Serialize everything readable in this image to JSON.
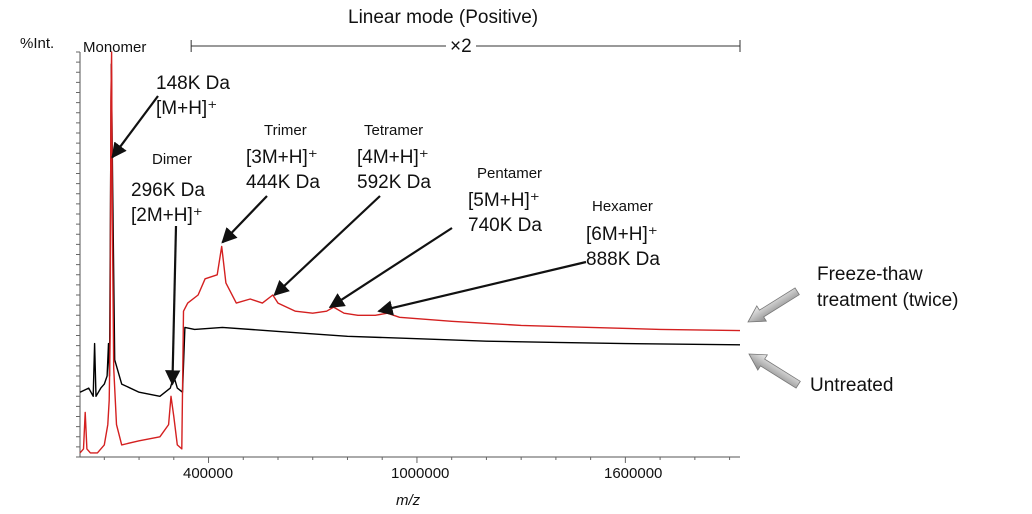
{
  "chart_data": {
    "type": "line",
    "title": "Linear mode (Positive)",
    "xlabel": "m/z",
    "ylabel": "%Int.",
    "xlim": [
      30000,
      1930000
    ],
    "ylim": [
      0,
      100
    ],
    "x_ticks": [
      {
        "value": 400000,
        "label": "400000"
      },
      {
        "value": 1000000,
        "label": "1000000"
      },
      {
        "value": 1600000,
        "label": "1600000"
      }
    ],
    "zoom": {
      "label": "×2",
      "from": 350000,
      "to": 1930000
    },
    "series": [
      {
        "name": "Untreated",
        "color": "#000000",
        "points": [
          [
            30000,
            16
          ],
          [
            55000,
            17
          ],
          [
            68000,
            15
          ],
          [
            72000,
            28
          ],
          [
            76000,
            15
          ],
          [
            90000,
            17
          ],
          [
            100000,
            18
          ],
          [
            108000,
            20
          ],
          [
            112000,
            28
          ],
          [
            115000,
            20
          ],
          [
            120000,
            97
          ],
          [
            124000,
            66
          ],
          [
            130000,
            24
          ],
          [
            150000,
            18
          ],
          [
            200000,
            16
          ],
          [
            260000,
            15
          ],
          [
            290000,
            17
          ],
          [
            300000,
            20
          ],
          [
            310000,
            17
          ],
          [
            325000,
            16
          ],
          [
            332000,
            32
          ],
          [
            360000,
            31.5
          ],
          [
            440000,
            32
          ],
          [
            600000,
            31
          ],
          [
            800000,
            29.8
          ],
          [
            1000000,
            29.2
          ],
          [
            1200000,
            28.6
          ],
          [
            1400000,
            28.3
          ],
          [
            1600000,
            28
          ],
          [
            1930000,
            27.7
          ]
        ]
      },
      {
        "name": "Freeze-thaw treatment (twice)",
        "color": "#d42020",
        "points": [
          [
            30000,
            1
          ],
          [
            40000,
            2
          ],
          [
            45000,
            11
          ],
          [
            50000,
            2
          ],
          [
            60000,
            1
          ],
          [
            80000,
            1
          ],
          [
            100000,
            3
          ],
          [
            110000,
            8
          ],
          [
            114000,
            14
          ],
          [
            117000,
            30
          ],
          [
            119000,
            88
          ],
          [
            121000,
            100
          ],
          [
            123000,
            60
          ],
          [
            127000,
            22
          ],
          [
            135000,
            8
          ],
          [
            150000,
            3
          ],
          [
            200000,
            4
          ],
          [
            260000,
            5
          ],
          [
            285000,
            8
          ],
          [
            292000,
            15
          ],
          [
            300000,
            10
          ],
          [
            310000,
            3
          ],
          [
            323000,
            2
          ],
          [
            328000,
            36
          ],
          [
            340000,
            38
          ],
          [
            370000,
            40
          ],
          [
            390000,
            44
          ],
          [
            425000,
            45
          ],
          [
            438000,
            52
          ],
          [
            450000,
            43
          ],
          [
            480000,
            38
          ],
          [
            520000,
            39
          ],
          [
            555000,
            38
          ],
          [
            585000,
            40
          ],
          [
            600000,
            38
          ],
          [
            650000,
            36
          ],
          [
            700000,
            35.5
          ],
          [
            740000,
            36
          ],
          [
            760000,
            37
          ],
          [
            790000,
            35.5
          ],
          [
            830000,
            35
          ],
          [
            880000,
            35
          ],
          [
            915000,
            35.5
          ],
          [
            950000,
            34.5
          ],
          [
            1100000,
            33.5
          ],
          [
            1300000,
            32.5
          ],
          [
            1500000,
            32
          ],
          [
            1700000,
            31.5
          ],
          [
            1930000,
            31.2
          ]
        ]
      }
    ],
    "annotations": [
      {
        "lines": [
          "Monomer"
        ],
        "size": "small",
        "x": 123000,
        "y": 100
      },
      {
        "lines": [
          "148K Da",
          "[M+H]⁺"
        ],
        "size": "big",
        "arrow_to": [
          123000,
          74
        ]
      },
      {
        "lines": [
          "Dimer"
        ],
        "size": "small"
      },
      {
        "lines": [
          "296K Da",
          "[2M+H]⁺"
        ],
        "size": "big",
        "arrow_to": [
          296000,
          18
        ]
      },
      {
        "lines": [
          "Trimer"
        ],
        "size": "small"
      },
      {
        "lines": [
          "[3M+H]⁺",
          "444K Da"
        ],
        "size": "big",
        "arrow_to": [
          440000,
          53
        ]
      },
      {
        "lines": [
          "Tetramer"
        ],
        "size": "small"
      },
      {
        "lines": [
          "[4M+H]⁺",
          "592K Da"
        ],
        "size": "big",
        "arrow_to": [
          590000,
          40
        ]
      },
      {
        "lines": [
          "Pentamer"
        ],
        "size": "small"
      },
      {
        "lines": [
          "[5M+H]⁺",
          "740K Da"
        ],
        "size": "big",
        "arrow_to": [
          750000,
          37
        ]
      },
      {
        "lines": [
          "Hexamer"
        ],
        "size": "small"
      },
      {
        "lines": [
          "[6M+H]⁺",
          "888K Da"
        ],
        "size": "big",
        "arrow_to": [
          890000,
          36
        ]
      }
    ],
    "legend": [
      {
        "text": [
          "Freeze-thaw",
          "treatment (twice)"
        ],
        "series": "Freeze-thaw treatment (twice)"
      },
      {
        "text": [
          "Untreated"
        ],
        "series": "Untreated"
      }
    ],
    "grid": false
  }
}
